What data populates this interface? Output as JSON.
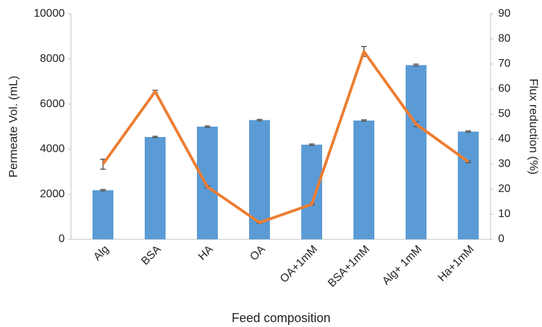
{
  "chart_data": {
    "type": "bar",
    "categories": [
      "Alg",
      "BSA",
      "HA",
      "OA",
      "OA+1mM",
      "BSA+1mM",
      "Alg+ 1mM",
      "Ha+1mM"
    ],
    "series": [
      {
        "name": "Permeate Vol. (mL)",
        "type": "bar",
        "color": "#5b9bd5",
        "values": [
          2180,
          4540,
          5000,
          5290,
          4200,
          5270,
          7730,
          4780
        ],
        "errors": [
          30,
          30,
          30,
          30,
          30,
          30,
          40,
          30
        ]
      },
      {
        "name": "Flux reduction (%)",
        "type": "line",
        "axis": "y2",
        "color": "#ed7d31",
        "values": [
          30,
          59,
          21,
          6.7,
          14,
          75,
          46,
          31
        ],
        "errors": [
          2,
          0.5,
          0.4,
          0.3,
          0.3,
          2,
          1,
          0.4
        ]
      }
    ],
    "error_color": "#595959",
    "ylabel": "Permeate Vol. (mL)",
    "y2label": "Flux reduction (%)",
    "xlabel": "Feed composition",
    "ylim": [
      0,
      10000
    ],
    "yticks": [
      0,
      2000,
      4000,
      6000,
      8000,
      10000
    ],
    "y2lim": [
      0,
      90
    ],
    "y2ticks": [
      0,
      10,
      20,
      30,
      40,
      50,
      60,
      70,
      80,
      90
    ],
    "grid": false
  }
}
